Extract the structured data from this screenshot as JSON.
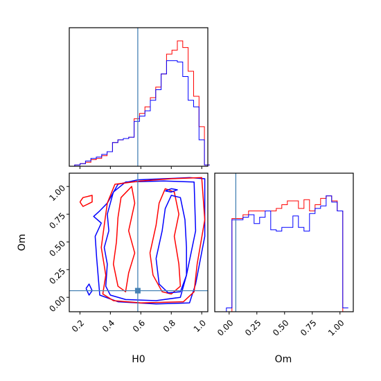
{
  "chart_data": {
    "type": "corner",
    "parameters": [
      "H0",
      "Om"
    ],
    "truth": {
      "H0": 0.58,
      "Om": 0.06
    },
    "colors": {
      "run_a": "#ff0000",
      "run_b": "#0000ff",
      "truth": "#4682b4"
    },
    "panels": [
      {
        "id": "hist-h0",
        "type": "histogram",
        "xlim": [
          0.13,
          1.04
        ],
        "ylim": [
          0,
          1.05
        ],
        "y_ticks_shown": false,
        "bins": {
          "start": 0.13,
          "step": 0.0355,
          "count": 26
        },
        "series": [
          {
            "color": "red",
            "values": [
              0.0,
              0.01,
              0.02,
              0.03,
              0.05,
              0.06,
              0.08,
              0.11,
              0.18,
              0.2,
              0.21,
              0.22,
              0.36,
              0.4,
              0.45,
              0.52,
              0.6,
              0.7,
              0.85,
              0.88,
              0.95,
              0.9,
              0.72,
              0.53,
              0.3,
              0.01
            ]
          },
          {
            "color": "blue",
            "values": [
              0.0,
              0.01,
              0.02,
              0.04,
              0.06,
              0.07,
              0.09,
              0.11,
              0.18,
              0.2,
              0.21,
              0.22,
              0.34,
              0.38,
              0.42,
              0.5,
              0.58,
              0.7,
              0.8,
              0.8,
              0.79,
              0.68,
              0.5,
              0.45,
              0.2,
              0.01
            ]
          }
        ]
      },
      {
        "id": "contour-h0-om",
        "type": "contour",
        "xlim": [
          0.13,
          1.04
        ],
        "ylim": [
          -0.13,
          1.12
        ],
        "x_ticks": [
          0.2,
          0.4,
          0.6,
          0.8,
          1.0
        ],
        "y_ticks": [
          0.0,
          0.25,
          0.5,
          0.75,
          1.0
        ],
        "x_tick_labels": [
          "0.2",
          "0.4",
          "0.6",
          "0.8",
          "1.0"
        ],
        "y_tick_labels": [
          "0.00",
          "0.25",
          "0.50",
          "0.75",
          "1.00"
        ],
        "xlabel": "H0",
        "ylabel": "Om",
        "contours": [
          {
            "color": "blue",
            "points": [
              [
                0.33,
                0.78
              ],
              [
                0.38,
                0.85
              ],
              [
                0.45,
                1.02
              ],
              [
                0.58,
                1.06
              ],
              [
                0.75,
                1.07
              ],
              [
                0.92,
                1.08
              ],
              [
                1.02,
                1.07
              ],
              [
                1.02,
                0.55
              ],
              [
                0.96,
                0.12
              ],
              [
                0.92,
                -0.05
              ],
              [
                0.7,
                -0.06
              ],
              [
                0.45,
                -0.04
              ],
              [
                0.33,
                0.02
              ],
              [
                0.31,
                0.35
              ],
              [
                0.3,
                0.55
              ],
              [
                0.34,
                0.67
              ],
              [
                0.29,
                0.73
              ],
              [
                0.33,
                0.78
              ]
            ]
          },
          {
            "color": "blue",
            "points": [
              [
                0.39,
                0.6
              ],
              [
                0.38,
                0.75
              ],
              [
                0.42,
                0.95
              ],
              [
                0.5,
                1.04
              ],
              [
                0.75,
                1.05
              ],
              [
                0.95,
                1.04
              ],
              [
                0.96,
                0.6
              ],
              [
                0.9,
                0.2
              ],
              [
                0.86,
                0.0
              ],
              [
                0.7,
                -0.03
              ],
              [
                0.5,
                -0.02
              ],
              [
                0.4,
                0.02
              ],
              [
                0.37,
                0.1
              ],
              [
                0.38,
                0.3
              ],
              [
                0.36,
                0.45
              ],
              [
                0.39,
                0.6
              ]
            ]
          },
          {
            "color": "red",
            "points": [
              [
                0.38,
                0.85
              ],
              [
                0.43,
                1.02
              ],
              [
                0.6,
                1.05
              ],
              [
                0.8,
                1.07
              ],
              [
                1.0,
                1.08
              ],
              [
                1.02,
                0.7
              ],
              [
                0.97,
                0.3
              ],
              [
                0.95,
                0.05
              ],
              [
                0.88,
                -0.04
              ],
              [
                0.6,
                -0.05
              ],
              [
                0.42,
                -0.03
              ],
              [
                0.35,
                0.03
              ],
              [
                0.37,
                0.2
              ],
              [
                0.34,
                0.45
              ],
              [
                0.36,
                0.65
              ],
              [
                0.38,
                0.85
              ]
            ]
          },
          {
            "color": "red",
            "points": [
              [
                0.45,
                0.72
              ],
              [
                0.47,
                0.9
              ],
              [
                0.54,
                1.0
              ],
              [
                0.56,
                0.85
              ],
              [
                0.52,
                0.6
              ],
              [
                0.56,
                0.4
              ],
              [
                0.52,
                0.22
              ],
              [
                0.5,
                0.05
              ],
              [
                0.45,
                0.1
              ],
              [
                0.42,
                0.3
              ],
              [
                0.44,
                0.5
              ],
              [
                0.45,
                0.72
              ]
            ]
          },
          {
            "color": "red",
            "points": [
              [
                0.66,
                0.4
              ],
              [
                0.7,
                0.65
              ],
              [
                0.72,
                0.85
              ],
              [
                0.76,
                0.98
              ],
              [
                0.82,
                0.95
              ],
              [
                0.85,
                0.75
              ],
              [
                0.82,
                0.55
              ],
              [
                0.85,
                0.3
              ],
              [
                0.86,
                0.1
              ],
              [
                0.8,
                0.03
              ],
              [
                0.74,
                0.05
              ],
              [
                0.68,
                0.2
              ],
              [
                0.66,
                0.4
              ]
            ]
          },
          {
            "color": "blue",
            "points": [
              [
                0.7,
                0.35
              ],
              [
                0.74,
                0.6
              ],
              [
                0.76,
                0.8
              ],
              [
                0.8,
                0.92
              ],
              [
                0.86,
                0.9
              ],
              [
                0.89,
                0.7
              ],
              [
                0.9,
                0.45
              ],
              [
                0.9,
                0.2
              ],
              [
                0.86,
                0.05
              ],
              [
                0.78,
                0.04
              ],
              [
                0.72,
                0.12
              ],
              [
                0.7,
                0.35
              ]
            ]
          },
          {
            "color": "blue",
            "points": [
              [
                0.24,
                0.08
              ],
              [
                0.26,
                0.12
              ],
              [
                0.28,
                0.06
              ],
              [
                0.26,
                0.02
              ],
              [
                0.24,
                0.08
              ]
            ]
          },
          {
            "color": "red",
            "points": [
              [
                0.2,
                0.86
              ],
              [
                0.22,
                0.9
              ],
              [
                0.28,
                0.92
              ],
              [
                0.28,
                0.86
              ],
              [
                0.22,
                0.82
              ],
              [
                0.2,
                0.86
              ]
            ]
          },
          {
            "color": "blue",
            "points": [
              [
                0.76,
                0.96
              ],
              [
                0.8,
                0.98
              ],
              [
                0.84,
                0.97
              ],
              [
                0.8,
                0.95
              ],
              [
                0.76,
                0.96
              ]
            ]
          }
        ]
      },
      {
        "id": "hist-om",
        "type": "histogram",
        "xlim": [
          -0.13,
          1.12
        ],
        "ylim": [
          0,
          1.1
        ],
        "x_ticks": [
          0.0,
          0.25,
          0.5,
          0.75,
          1.0
        ],
        "x_tick_labels": [
          "0.00",
          "0.25",
          "0.50",
          "0.75",
          "1.00"
        ],
        "xlabel": "Om",
        "y_ticks_shown": false,
        "bins": {
          "start": -0.075,
          "step": 0.05,
          "count": 23
        },
        "series": [
          {
            "color": "red",
            "values": [
              0.0,
              0.0,
              0.74,
              0.74,
              0.77,
              0.8,
              0.8,
              0.8,
              0.8,
              0.8,
              0.82,
              0.85,
              0.88,
              0.88,
              0.82,
              0.89,
              0.8,
              0.85,
              0.9,
              0.92,
              0.88,
              0.8,
              0.0
            ]
          },
          {
            "color": "blue",
            "values": [
              0.0,
              0.03,
              0.73,
              0.73,
              0.75,
              0.77,
              0.7,
              0.75,
              0.8,
              0.65,
              0.64,
              0.67,
              0.67,
              0.76,
              0.67,
              0.64,
              0.78,
              0.82,
              0.84,
              0.92,
              0.87,
              0.8,
              0.03
            ]
          }
        ]
      }
    ]
  }
}
